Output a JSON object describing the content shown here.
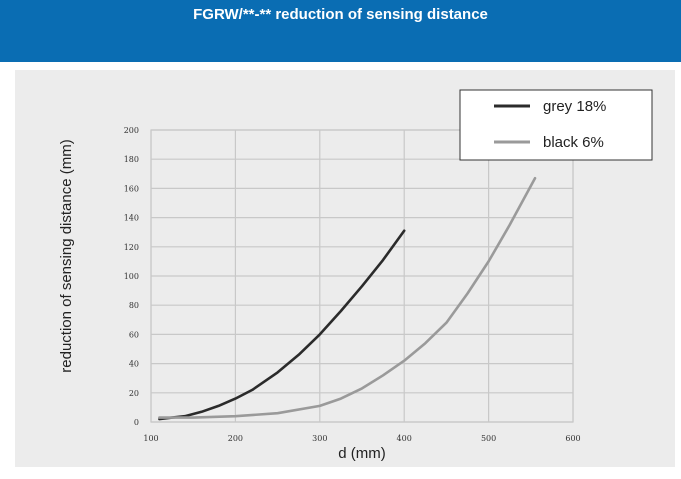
{
  "header": {
    "title": "FGRW/**-** reduction of sensing distance"
  },
  "colors": {
    "header_bg": "#0a6db3",
    "panel_bg": "#ececec",
    "grid_color": "#c8c8c8",
    "grey_series": "#2b2b2b",
    "black_series": "#9a9a9a"
  },
  "chart_data": {
    "type": "line",
    "title": "",
    "xlabel": "d (mm)",
    "ylabel": "reduction of sensing distance (mm)",
    "xlim": [
      100,
      600
    ],
    "ylim": [
      0,
      200
    ],
    "xticks": [
      100,
      200,
      300,
      400,
      500,
      600
    ],
    "yticks": [
      0,
      20,
      40,
      60,
      80,
      100,
      120,
      140,
      160,
      180,
      200
    ],
    "grid": true,
    "legend_position": "top-right",
    "series": [
      {
        "name": "grey 18%",
        "x": [
          110,
          125,
          140,
          160,
          180,
          200,
          220,
          250,
          275,
          300,
          325,
          350,
          375,
          400
        ],
        "y": [
          2,
          3,
          4,
          7,
          11,
          16,
          22,
          34,
          46,
          60,
          76,
          93,
          111,
          131
        ]
      },
      {
        "name": "black 6%",
        "x": [
          110,
          150,
          200,
          250,
          300,
          325,
          350,
          375,
          400,
          425,
          450,
          475,
          500,
          525,
          555
        ],
        "y": [
          3,
          3,
          4,
          6,
          11,
          16,
          23,
          32,
          42,
          54,
          68,
          88,
          110,
          135,
          167
        ]
      }
    ]
  }
}
